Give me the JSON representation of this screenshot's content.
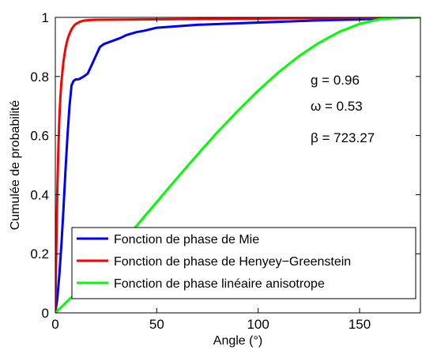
{
  "chart_data": {
    "type": "line",
    "xlabel": "Angle (°)",
    "ylabel": "Cumulée de probabilité",
    "xlim": [
      0,
      180
    ],
    "ylim": [
      0,
      1
    ],
    "xticks": [
      0,
      50,
      100,
      150
    ],
    "yticks": [
      0,
      0.2,
      0.4,
      0.6,
      0.8,
      1
    ],
    "xtick_labels": [
      "0",
      "50",
      "100",
      "150"
    ],
    "ytick_labels": [
      "0",
      "0.2",
      "0.4",
      "0.6",
      "0.8",
      "1"
    ],
    "grid": false,
    "legend_position": "bottom-right",
    "annotations": [
      "g = 0.96",
      "ω = 0.53",
      "β = 723.27"
    ],
    "series": [
      {
        "name": "Fonction de phase de Mie",
        "color": "#0000ff",
        "x": [
          0,
          1,
          2,
          3,
          4,
          5,
          6,
          7,
          8,
          9,
          10,
          11,
          12,
          14,
          16,
          18,
          20,
          22,
          24,
          28,
          32,
          35,
          40,
          44,
          50,
          60,
          70,
          90,
          110,
          130,
          150,
          165,
          180
        ],
        "y": [
          0,
          0.05,
          0.13,
          0.23,
          0.35,
          0.48,
          0.6,
          0.7,
          0.77,
          0.785,
          0.79,
          0.79,
          0.792,
          0.8,
          0.81,
          0.84,
          0.87,
          0.9,
          0.91,
          0.92,
          0.93,
          0.94,
          0.95,
          0.955,
          0.965,
          0.97,
          0.975,
          0.98,
          0.985,
          0.99,
          0.993,
          0.997,
          1
        ]
      },
      {
        "name": "Fonction de phase de Henyey−Greenstein",
        "color": "#ff0000",
        "x": [
          0,
          0.5,
          1,
          1.5,
          2,
          2.5,
          3,
          4,
          5,
          6,
          7,
          8,
          9,
          10,
          12,
          14,
          17,
          20,
          40,
          80,
          120,
          180
        ],
        "y": [
          0,
          0.22,
          0.42,
          0.56,
          0.66,
          0.73,
          0.78,
          0.85,
          0.895,
          0.925,
          0.945,
          0.96,
          0.97,
          0.977,
          0.985,
          0.989,
          0.991,
          0.992,
          0.993,
          0.995,
          0.997,
          1
        ]
      },
      {
        "name": "Fonction de phase linéaire anisotrope",
        "color": "#00ff00",
        "x": [
          0,
          10,
          20,
          30,
          40,
          50,
          60,
          70,
          80,
          90,
          100,
          110,
          120,
          130,
          140,
          150,
          160,
          170,
          180
        ],
        "y": [
          0,
          0.066,
          0.138,
          0.215,
          0.294,
          0.375,
          0.456,
          0.535,
          0.612,
          0.684,
          0.752,
          0.814,
          0.868,
          0.914,
          0.951,
          0.978,
          0.994,
          0.999,
          1
        ]
      }
    ]
  }
}
